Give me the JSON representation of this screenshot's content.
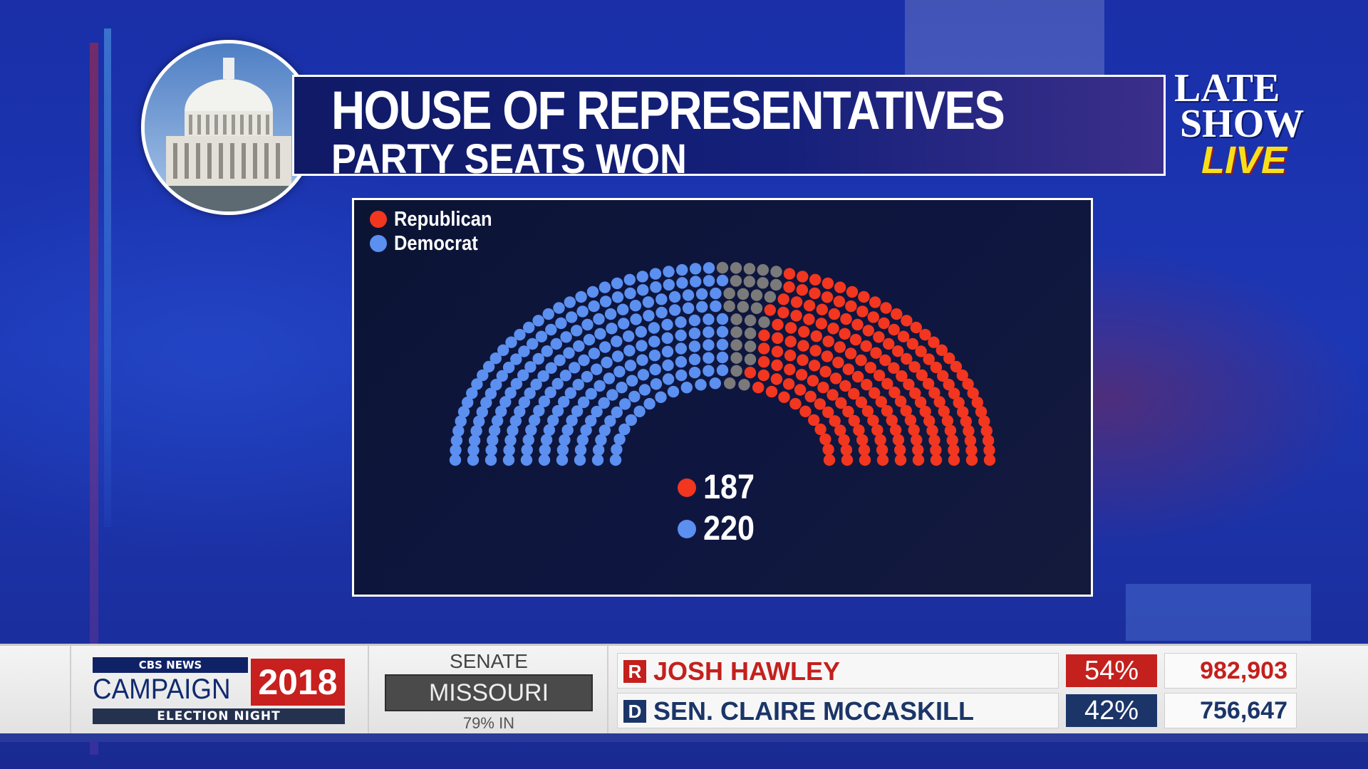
{
  "header": {
    "title": "HOUSE OF REPRESENTATIVES",
    "subtitle": "PARTY SEATS WON"
  },
  "logo": {
    "line1": "LATE",
    "line2": "SHOW",
    "line3": "LIVE"
  },
  "colors": {
    "republican": "#f2361f",
    "democrat": "#5b8ff0",
    "undecided": "#7a7a7a"
  },
  "chart_data": {
    "type": "parliament",
    "total_seats": 435,
    "legend": [
      "Republican",
      "Democrat"
    ],
    "series": [
      {
        "name": "Democrat",
        "value": 220
      },
      {
        "name": "Republican",
        "value": 187
      },
      {
        "name": "",
        "value": 28
      }
    ],
    "totals": {
      "republican": "187",
      "democrat": "220"
    }
  },
  "ticker": {
    "brand_network": "CBS NEWS",
    "brand_campaign": "CAMPAIGN",
    "brand_year": "2018",
    "brand_night": "ELECTION NIGHT",
    "race_label": "SENATE",
    "state": "MISSOURI",
    "reporting": "79% IN",
    "candidates": [
      {
        "party": "R",
        "name": "JOSH HAWLEY",
        "pct": "54%",
        "votes": "982,903",
        "color": "#c4201d"
      },
      {
        "party": "D",
        "name": "SEN. CLAIRE MCCASKILL",
        "pct": "42%",
        "votes": "756,647",
        "color": "#1b3568"
      }
    ]
  }
}
